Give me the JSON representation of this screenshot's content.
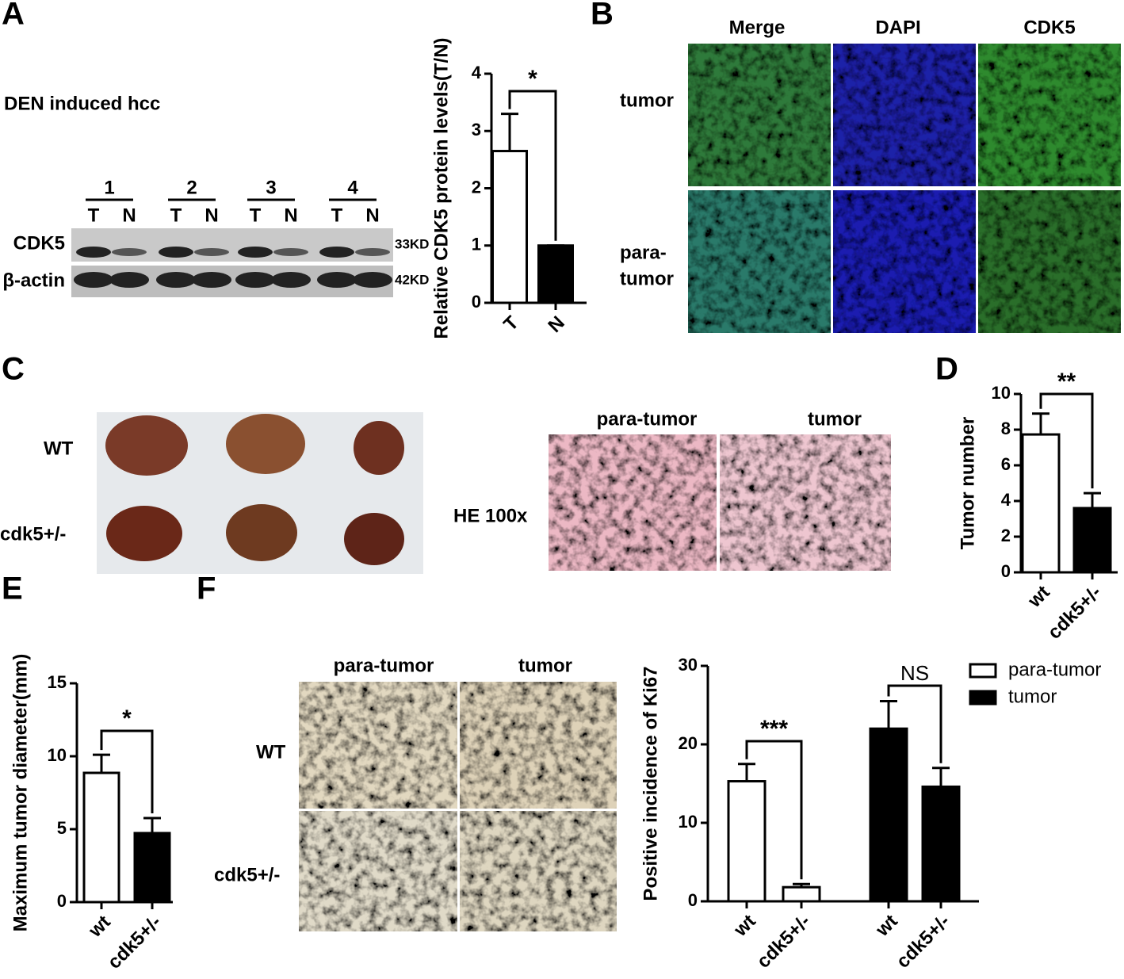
{
  "panel_labels": [
    "A",
    "B",
    "C",
    "D",
    "E",
    "F"
  ],
  "blot": {
    "title": "DEN induced hcc",
    "groups": [
      "1",
      "2",
      "3",
      "4"
    ],
    "lanes": [
      "T",
      "N"
    ],
    "rows": [
      "CDK5",
      "β-actin"
    ],
    "sizes": [
      "33KD",
      "42KD"
    ]
  },
  "immunofluorescence": {
    "columns": [
      "Merge",
      "DAPI",
      "CDK5"
    ],
    "rows": [
      [
        "tumor"
      ],
      [
        "para-",
        "tumor"
      ]
    ]
  },
  "liver": {
    "rows": [
      "WT",
      "cdk5+/-"
    ]
  },
  "he": {
    "label": "HE 100x",
    "columns": [
      "para-tumor",
      "tumor"
    ]
  },
  "ki67": {
    "columns": [
      "para-tumor",
      "tumor"
    ],
    "rows": [
      "WT",
      "cdk5+/-"
    ]
  },
  "chart_data": [
    {
      "type": "bar",
      "ylabel": "Relative CDK5 protein levels(T/N)",
      "categories": [
        "T",
        "N"
      ],
      "values": [
        2.65,
        1.0
      ],
      "errors": [
        0.65,
        0
      ],
      "colors": [
        "#ffffff",
        "#000000"
      ],
      "ylim": [
        0,
        4
      ],
      "yticks": [
        0,
        1,
        2,
        3,
        4
      ],
      "annotations": [
        "*"
      ]
    },
    {
      "type": "bar",
      "ylabel": "Tumor number",
      "categories": [
        "wt",
        "cdk5+/-"
      ],
      "values": [
        7.73,
        3.6
      ],
      "errors": [
        1.17,
        0.84
      ],
      "colors": [
        "#ffffff",
        "#000000"
      ],
      "ylim": [
        0,
        10
      ],
      "yticks": [
        0,
        2,
        4,
        6,
        8,
        10
      ],
      "annotations": [
        "**"
      ]
    },
    {
      "type": "bar",
      "ylabel": "Maximum tumor diameter(mm)",
      "categories": [
        "wt",
        "cdk5+/-"
      ],
      "values": [
        8.86,
        4.73
      ],
      "errors": [
        1.24,
        1.03
      ],
      "colors": [
        "#ffffff",
        "#000000"
      ],
      "ylim": [
        0,
        15
      ],
      "yticks": [
        0,
        5,
        10,
        15
      ],
      "annotations": [
        "*"
      ]
    },
    {
      "type": "groupedbar",
      "ylabel": "Positive incidence of Ki67",
      "categories": [
        "wt",
        "cdk5+/-"
      ],
      "series": [
        {
          "name": "para-tumor",
          "color": "#ffffff",
          "values": [
            15.3,
            1.8
          ],
          "errors": [
            2.2,
            0.4
          ]
        },
        {
          "name": "tumor",
          "color": "#000000",
          "values": [
            22.0,
            14.6
          ],
          "errors": [
            3.5,
            2.4
          ]
        }
      ],
      "ylim": [
        0,
        30
      ],
      "yticks": [
        0,
        10,
        20,
        30
      ],
      "annotations": [
        "***",
        "NS"
      ]
    }
  ]
}
